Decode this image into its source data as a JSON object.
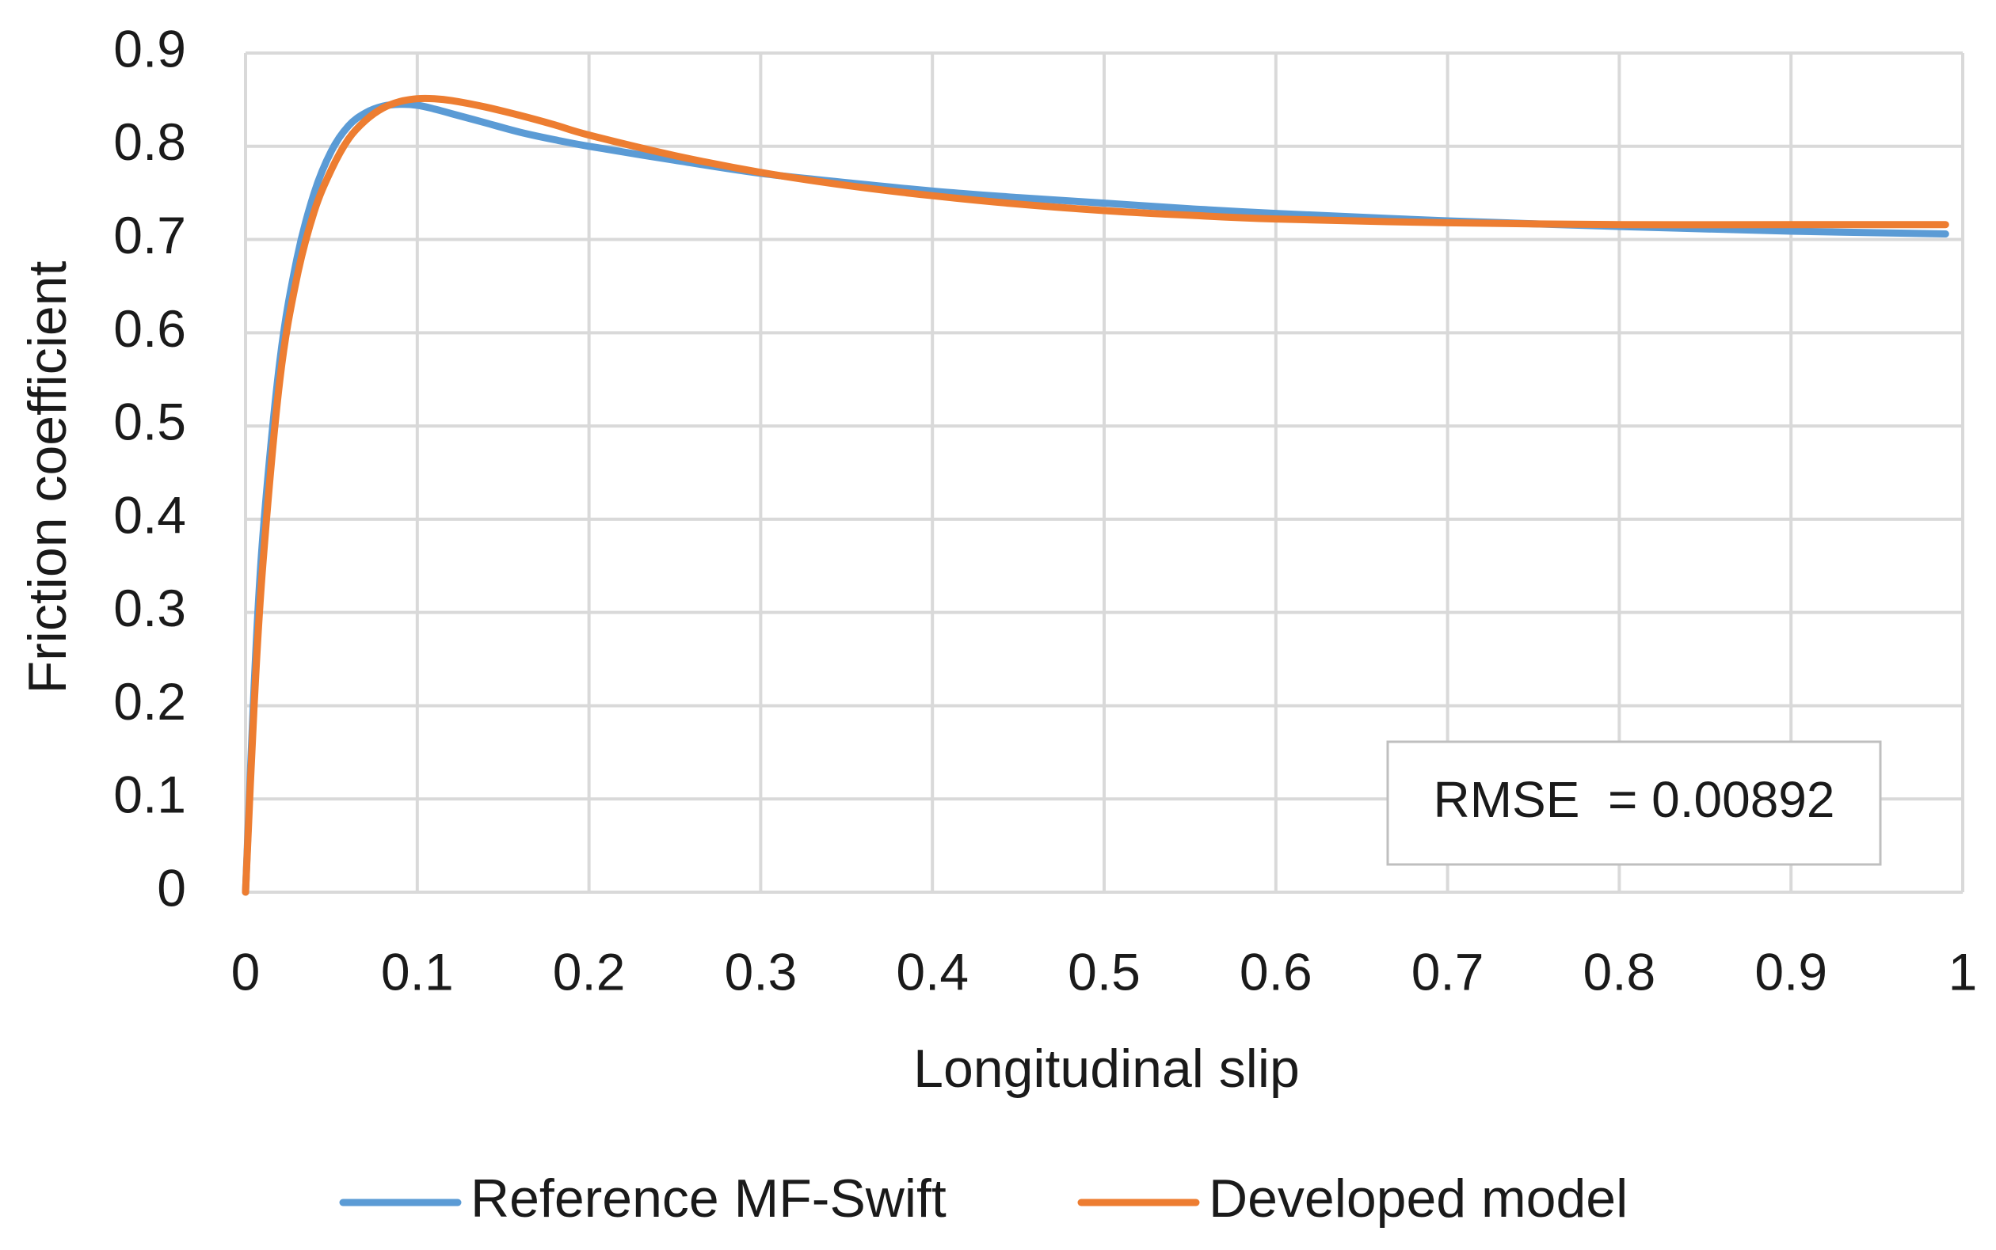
{
  "chart_data": {
    "type": "line",
    "title": "",
    "xlabel": "Longitudinal slip",
    "ylabel": "Friction coefficient",
    "xlim": [
      0,
      1
    ],
    "ylim": [
      0,
      0.9
    ],
    "x_ticks": [
      "0",
      "0.1",
      "0.2",
      "0.3",
      "0.4",
      "0.5",
      "0.6",
      "0.7",
      "0.8",
      "0.9",
      "1"
    ],
    "y_ticks": [
      "0",
      "0.1",
      "0.2",
      "0.3",
      "0.4",
      "0.5",
      "0.6",
      "0.7",
      "0.8",
      "0.9"
    ],
    "grid": true,
    "legend_position": "bottom",
    "annotation": "RMSE  = 0.00892",
    "series": [
      {
        "name": "Reference MF-Swift",
        "color": "#5b9bd5",
        "x": [
          0,
          0.005,
          0.01,
          0.02,
          0.03,
          0.04,
          0.05,
          0.06,
          0.07,
          0.08,
          0.09,
          0.1,
          0.11,
          0.12,
          0.14,
          0.16,
          0.18,
          0.2,
          0.25,
          0.3,
          0.35,
          0.4,
          0.45,
          0.5,
          0.55,
          0.6,
          0.7,
          0.8,
          0.9,
          0.99
        ],
        "y": [
          0,
          0.22,
          0.38,
          0.57,
          0.68,
          0.75,
          0.795,
          0.822,
          0.836,
          0.843,
          0.845,
          0.844,
          0.84,
          0.835,
          0.825,
          0.815,
          0.807,
          0.8,
          0.785,
          0.771,
          0.761,
          0.752,
          0.745,
          0.739,
          0.733,
          0.728,
          0.72,
          0.714,
          0.709,
          0.706
        ]
      },
      {
        "name": "Developed model",
        "color": "#ed7d31",
        "x": [
          0,
          0.005,
          0.01,
          0.02,
          0.03,
          0.04,
          0.05,
          0.06,
          0.07,
          0.08,
          0.09,
          0.1,
          0.11,
          0.12,
          0.14,
          0.16,
          0.18,
          0.2,
          0.25,
          0.3,
          0.35,
          0.4,
          0.45,
          0.5,
          0.55,
          0.6,
          0.7,
          0.8,
          0.9,
          0.99
        ],
        "y": [
          0,
          0.2,
          0.35,
          0.55,
          0.66,
          0.73,
          0.775,
          0.808,
          0.828,
          0.841,
          0.848,
          0.851,
          0.851,
          0.849,
          0.842,
          0.833,
          0.823,
          0.812,
          0.79,
          0.772,
          0.758,
          0.747,
          0.738,
          0.731,
          0.726,
          0.722,
          0.718,
          0.716,
          0.716,
          0.716
        ]
      }
    ]
  }
}
